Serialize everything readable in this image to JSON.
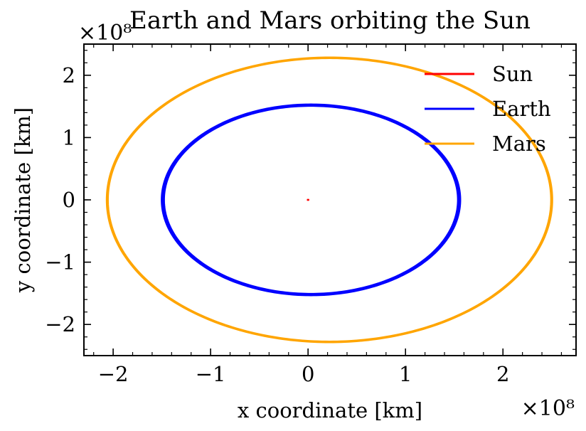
{
  "chart_data": {
    "type": "line",
    "title": "Earth and Mars orbiting the Sun",
    "xlabel": "x coordinate [km]",
    "ylabel": "y coordinate [km]",
    "x_multiplier_label": "×10⁸",
    "y_multiplier_label": "×10⁸",
    "xlim": [
      -2.3,
      2.75
    ],
    "ylim": [
      -2.5,
      2.5
    ],
    "xticks": [
      -2,
      -1,
      0,
      1,
      2
    ],
    "xtick_labels": [
      "−2",
      "−1",
      "0",
      "1",
      "2"
    ],
    "yticks": [
      -2,
      -1,
      0,
      1,
      2
    ],
    "ytick_labels": [
      "−2",
      "−1",
      "0",
      "1",
      "2"
    ],
    "grid": false,
    "legend_position": "top-right",
    "units_scale": "1e8 km",
    "series": [
      {
        "name": "Sun",
        "color": "#ff0000",
        "kind": "point",
        "center": [
          0.0,
          0.0
        ],
        "semi_major": 0.005,
        "semi_minor": 0.004,
        "arc_deg": [
          0,
          360
        ],
        "passes": 1
      },
      {
        "name": "Earth",
        "color": "#0000ff",
        "kind": "ellipse-orbit",
        "center": [
          0.03,
          0.0
        ],
        "semi_major": 1.52,
        "semi_minor": 1.52,
        "arc_deg": [
          -33,
          362
        ],
        "passes": 3
      },
      {
        "name": "Mars",
        "color": "#ffa500",
        "kind": "ellipse-orbit",
        "center": [
          0.22,
          0.0
        ],
        "semi_major": 2.28,
        "semi_minor": 2.28,
        "arc_deg": [
          0,
          382
        ],
        "passes": 2
      }
    ]
  }
}
